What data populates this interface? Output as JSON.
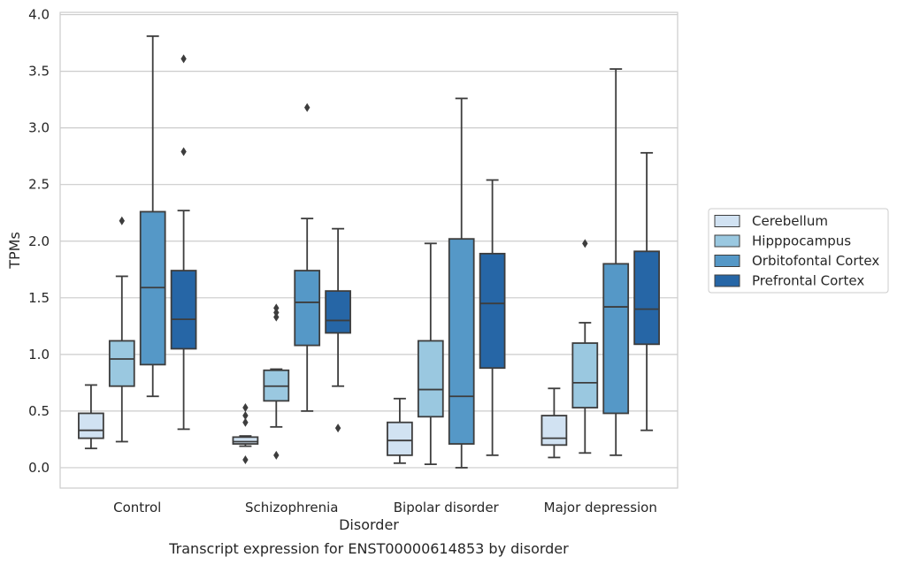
{
  "chart_data": {
    "type": "box",
    "caption": "Transcript expression for ENST00000614853 by disorder",
    "xlabel": "Disorder",
    "ylabel": "TPMs",
    "ylim": [
      -0.18,
      4.02
    ],
    "yticks": [
      0.0,
      0.5,
      1.0,
      1.5,
      2.0,
      2.5,
      3.0,
      3.5,
      4.0
    ],
    "ytick_labels": [
      "0.0",
      "0.5",
      "1.0",
      "1.5",
      "2.0",
      "2.5",
      "3.0",
      "3.5",
      "4.0"
    ],
    "grid": "horizontal",
    "legend_position": "right",
    "categories": [
      "Control",
      "Schizophrenia",
      "Bipolar disorder",
      "Major depression"
    ],
    "series": [
      {
        "name": "Cerebellum",
        "color": "#d1e2f2",
        "boxes": [
          {
            "whislo": 0.17,
            "q1": 0.26,
            "med": 0.33,
            "q3": 0.48,
            "whishi": 0.73,
            "fliers": []
          },
          {
            "whislo": 0.19,
            "q1": 0.21,
            "med": 0.23,
            "q3": 0.27,
            "whishi": 0.28,
            "fliers": [
              0.07,
              0.4,
              0.46,
              0.53
            ]
          },
          {
            "whislo": 0.04,
            "q1": 0.11,
            "med": 0.24,
            "q3": 0.4,
            "whishi": 0.61,
            "fliers": []
          },
          {
            "whislo": 0.09,
            "q1": 0.2,
            "med": 0.26,
            "q3": 0.46,
            "whishi": 0.7,
            "fliers": []
          }
        ]
      },
      {
        "name": "Hipppocampus",
        "color": "#9ac8e0",
        "boxes": [
          {
            "whislo": 0.23,
            "q1": 0.72,
            "med": 0.96,
            "q3": 1.12,
            "whishi": 1.69,
            "fliers": [
              2.18
            ]
          },
          {
            "whislo": 0.36,
            "q1": 0.59,
            "med": 0.72,
            "q3": 0.86,
            "whishi": 0.87,
            "fliers": [
              0.11,
              1.33,
              1.37,
              1.41
            ]
          },
          {
            "whislo": 0.03,
            "q1": 0.45,
            "med": 0.69,
            "q3": 1.12,
            "whishi": 1.98,
            "fliers": []
          },
          {
            "whislo": 0.13,
            "q1": 0.53,
            "med": 0.75,
            "q3": 1.1,
            "whishi": 1.28,
            "fliers": [
              1.98
            ]
          }
        ]
      },
      {
        "name": "Orbitofontal Cortex",
        "color": "#5598c7",
        "boxes": [
          {
            "whislo": 0.63,
            "q1": 0.91,
            "med": 1.59,
            "q3": 2.26,
            "whishi": 3.81,
            "fliers": []
          },
          {
            "whislo": 0.5,
            "q1": 1.08,
            "med": 1.46,
            "q3": 1.74,
            "whishi": 2.2,
            "fliers": [
              3.18
            ]
          },
          {
            "whislo": 0.0,
            "q1": 0.21,
            "med": 0.63,
            "q3": 2.02,
            "whishi": 3.26,
            "fliers": []
          },
          {
            "whislo": 0.11,
            "q1": 0.48,
            "med": 1.42,
            "q3": 1.8,
            "whishi": 3.52,
            "fliers": []
          }
        ]
      },
      {
        "name": "Prefrontal Cortex",
        "color": "#2666a6",
        "boxes": [
          {
            "whislo": 0.34,
            "q1": 1.05,
            "med": 1.31,
            "q3": 1.74,
            "whishi": 2.27,
            "fliers": [
              2.79,
              3.61
            ]
          },
          {
            "whislo": 0.72,
            "q1": 1.19,
            "med": 1.3,
            "q3": 1.56,
            "whishi": 2.11,
            "fliers": [
              0.35
            ]
          },
          {
            "whislo": 0.11,
            "q1": 0.88,
            "med": 1.45,
            "q3": 1.89,
            "whishi": 2.54,
            "fliers": []
          },
          {
            "whislo": 0.33,
            "q1": 1.09,
            "med": 1.4,
            "q3": 1.91,
            "whishi": 2.78,
            "fliers": []
          }
        ]
      }
    ]
  }
}
